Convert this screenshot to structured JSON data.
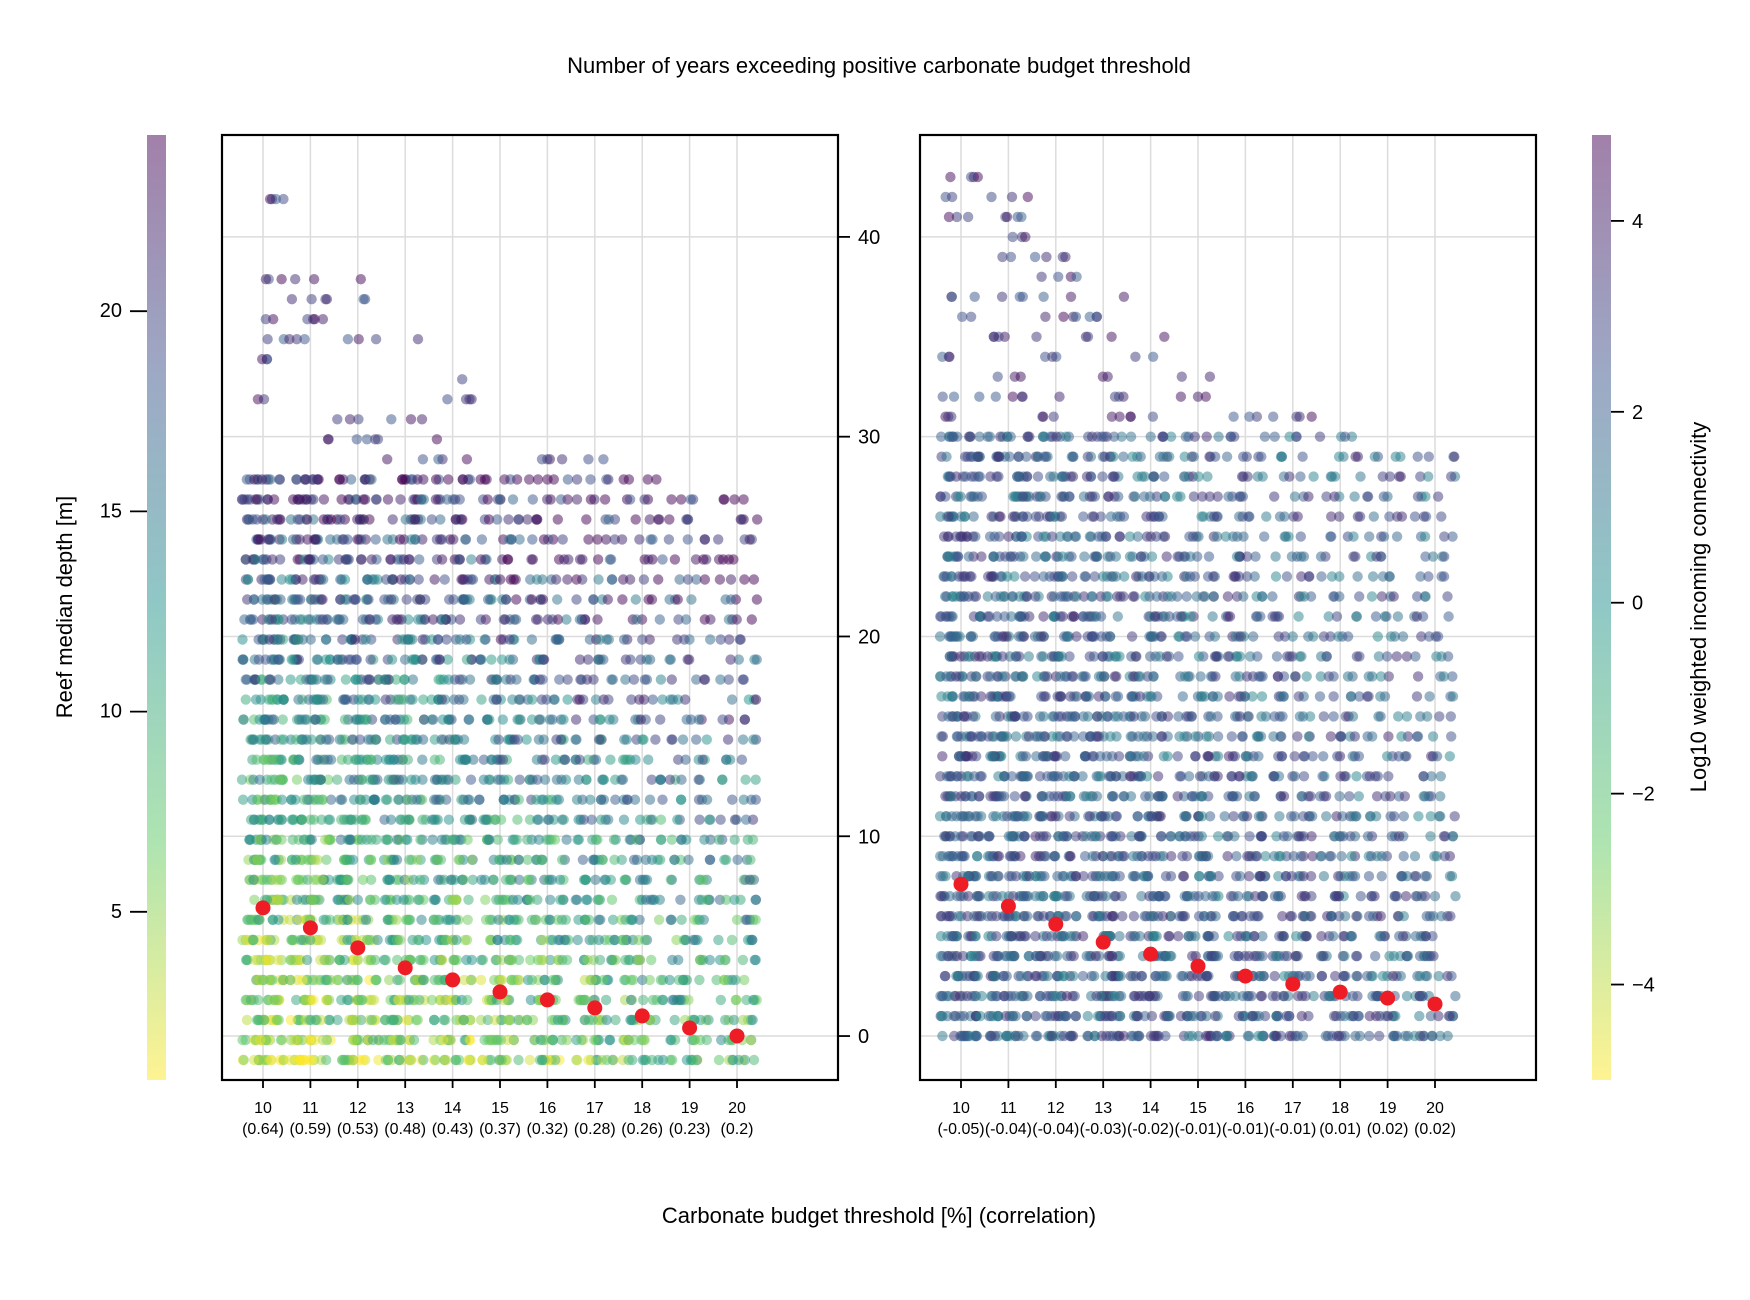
{
  "figure": {
    "title": "Number of years exceeding positive carbonate budget threshold",
    "xlabel": "Carbonate budget threshold [%] (correlation)",
    "left_ylabel": "Reef median depth [m]",
    "right_colorbar_label": "Log10 weighted incoming connectivity",
    "colors": {
      "median_marker": "#ee1c24",
      "grid": "#dcdcdc",
      "viridis": [
        "#fde725",
        "#5ec962",
        "#21918c",
        "#3b528b",
        "#440154"
      ],
      "point_alpha": 0.5
    }
  },
  "chart_data": [
    {
      "type": "scatter",
      "panel": "left",
      "description_of_points": "dense jittered strips per threshold, colored by connectivity",
      "x_ticks": [
        "10",
        "11",
        "12",
        "13",
        "14",
        "15",
        "16",
        "17",
        "18",
        "19",
        "20"
      ],
      "x_corr": [
        "(0.64)",
        "(0.59)",
        "(0.53)",
        "(0.48)",
        "(0.43)",
        "(0.37)",
        "(0.32)",
        "(0.28)",
        "(0.26)",
        "(0.23)",
        "(0.2)"
      ],
      "y_left_ticks": [
        5,
        10,
        15,
        20
      ],
      "ylim_left": [
        0.8,
        24.4
      ],
      "median_points": [
        5.1,
        4.6,
        4.1,
        3.6,
        3.3,
        3.0,
        2.8,
        2.6,
        2.4,
        2.1,
        1.9
      ],
      "max_depth_per_x": [
        22.8,
        22.2,
        21.2,
        20.2,
        18.7,
        17.7,
        16.7,
        16.7,
        16.2,
        15.7,
        15.7
      ],
      "strip_top_per_x": [
        16.2,
        16.2,
        16.2,
        16.2,
        16.2,
        16.2,
        16.2,
        16.2,
        16.2,
        15.7,
        15.7
      ],
      "low_connectivity_bias": 1.0
    },
    {
      "type": "scatter",
      "panel": "right",
      "x_ticks": [
        "10",
        "11",
        "12",
        "13",
        "14",
        "15",
        "16",
        "17",
        "18",
        "19",
        "20"
      ],
      "x_corr": [
        "(-0.05)",
        "(-0.04)",
        "(-0.04)",
        "(-0.03)",
        "(-0.02)",
        "(-0.01)",
        "(-0.01)",
        "(-0.01)",
        "(0.01)",
        "(0.02)",
        "(0.02)"
      ],
      "y_ticks": [
        0,
        10,
        20,
        30,
        40
      ],
      "ylim": [
        -2.2,
        45.1
      ],
      "median_points": [
        7.6,
        6.5,
        5.6,
        4.7,
        4.1,
        3.5,
        3.0,
        2.6,
        2.2,
        1.9,
        1.6
      ],
      "max_years_per_x": [
        43,
        42,
        40,
        38,
        35,
        33,
        31,
        31,
        30,
        29,
        29
      ],
      "strip_top_per_x": [
        30,
        30,
        30,
        30,
        30,
        30,
        30,
        30,
        30,
        29,
        29
      ],
      "low_connectivity_bias": 0.0
    }
  ],
  "colorbars": {
    "left": {
      "vmin": 0.8,
      "vmax": 24.4
    },
    "right": {
      "ticks": [
        -4,
        -2,
        0,
        2,
        4
      ],
      "vmin": -5.0,
      "vmax": 4.9,
      "tick_labels": [
        "−4",
        "−2",
        "0",
        "2",
        "4"
      ]
    }
  }
}
